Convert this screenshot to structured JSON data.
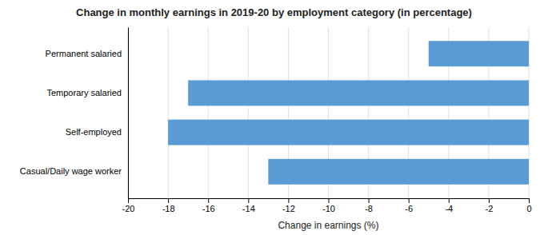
{
  "chart_data": {
    "type": "bar",
    "orientation": "horizontal",
    "title": "Change in monthly earnings in 2019-20 by employment category (in percentage)",
    "categories": [
      "Permanent salaried",
      "Temporary salaried",
      "Self-employed",
      "Casual/Daily wage worker"
    ],
    "values": [
      -5,
      -17,
      -18,
      -13
    ],
    "color": "#5b9bd5",
    "xlabel": "Change in earnings (%)",
    "xlim": [
      -20,
      0
    ],
    "xticks": [
      -20,
      -18,
      -16,
      -14,
      -12,
      -10,
      -8,
      -6,
      -4,
      -2,
      0
    ],
    "grid": true
  }
}
